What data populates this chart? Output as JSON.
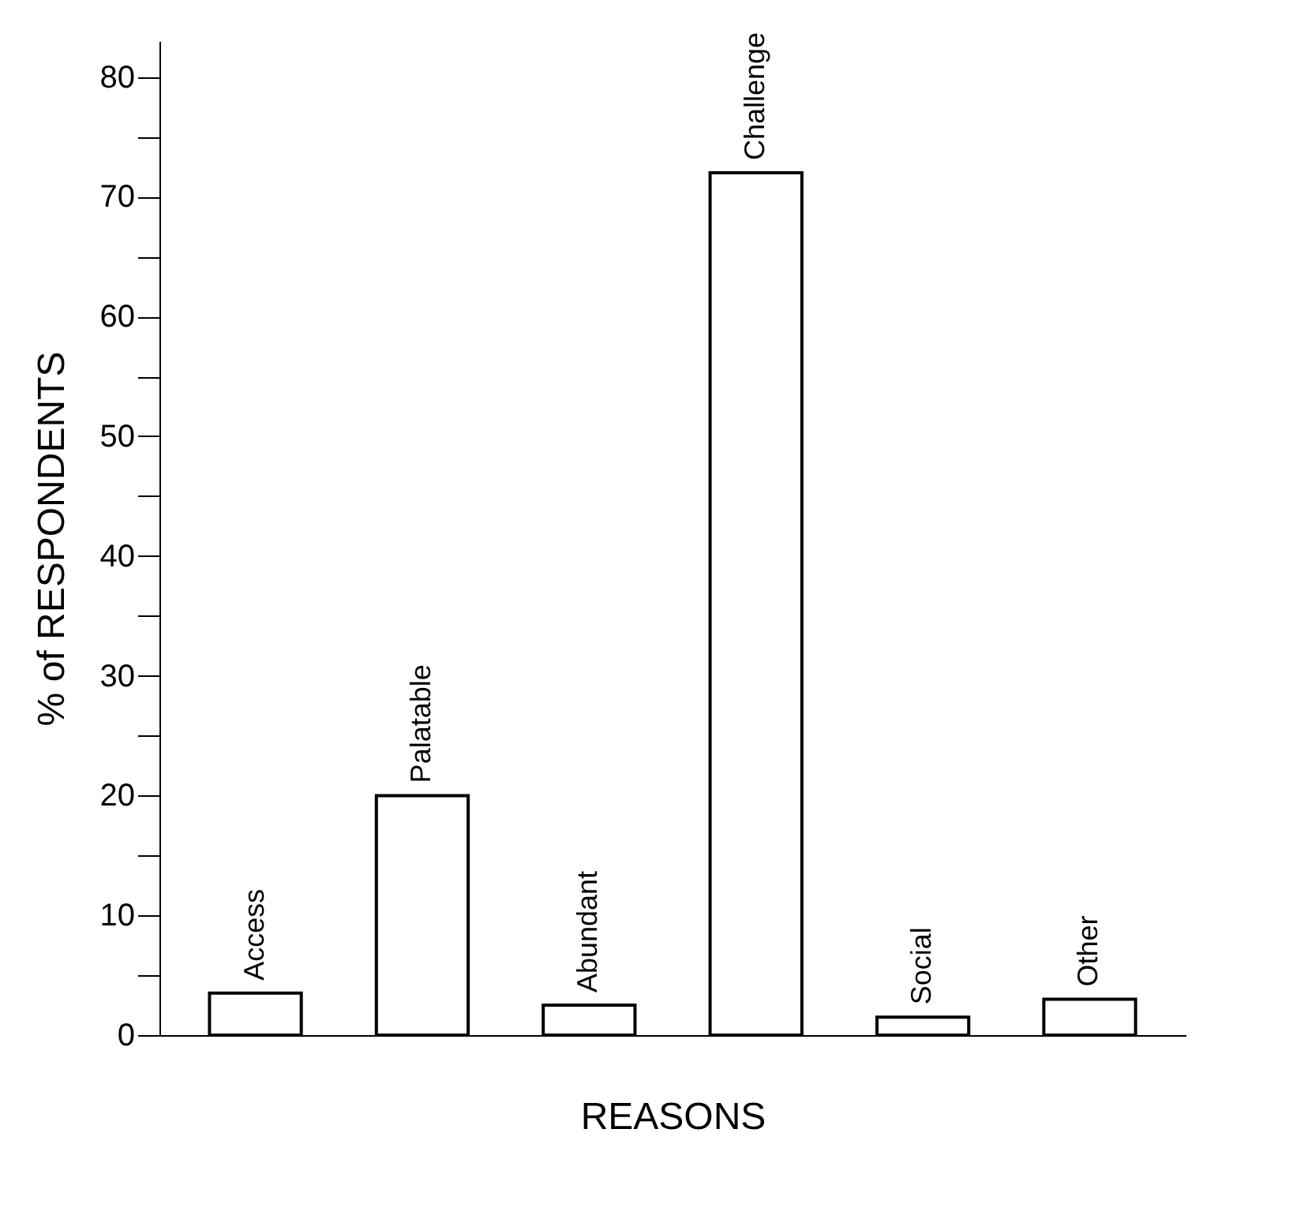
{
  "chart_data": {
    "type": "bar",
    "xlabel": "REASONS",
    "ylabel": "% of RESPONDENTS",
    "categories": [
      "Access",
      "Palatable",
      "Abundant",
      "Challenge",
      "Social",
      "Other"
    ],
    "values": [
      3.5,
      20,
      2.5,
      72,
      1.5,
      3
    ],
    "color": "#ffffff",
    "ylim": [
      0,
      83
    ],
    "yticks": [
      0,
      {
        "value": 5,
        "label": null
      },
      10,
      {
        "value": 15,
        "label": null
      },
      20,
      {
        "value": 25,
        "label": null
      },
      30,
      {
        "value": 35,
        "label": null
      },
      40,
      {
        "value": 45,
        "label": null
      },
      50,
      {
        "value": 55,
        "label": null
      },
      60,
      {
        "value": 65,
        "label": null
      },
      70,
      {
        "value": 75,
        "label": null
      },
      80
    ],
    "grid": false
  }
}
